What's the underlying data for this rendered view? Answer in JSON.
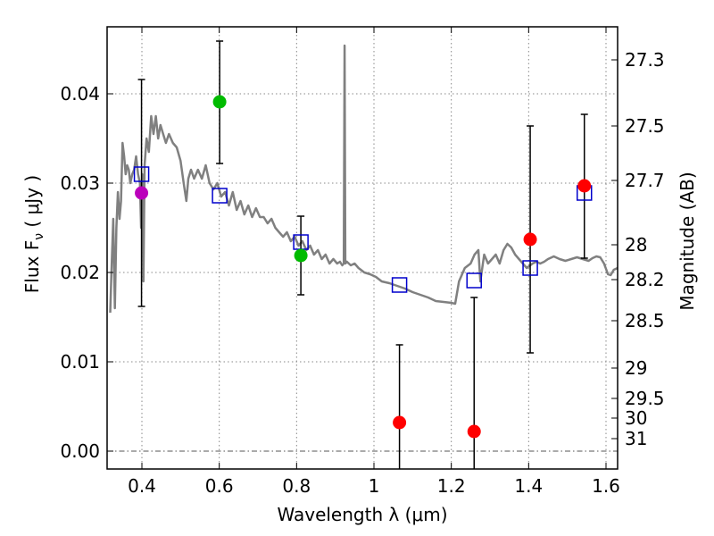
{
  "chart_data": {
    "type": "scatter",
    "title": "",
    "xlabel": "Wavelength  λ (μm)",
    "ylabel": "Flux  F_ν  ( μJy )",
    "ylabel_parts": {
      "prefix": "Flux  F",
      "subscript": "ν",
      "suffix": "  ( μJy )"
    },
    "ylabel_right": "Magnitude (AB)",
    "xlim": [
      0.31,
      1.63
    ],
    "ylim": [
      -0.002,
      0.0475
    ],
    "xticks": [
      0.4,
      0.6,
      0.8,
      1.0,
      1.2,
      1.4,
      1.6
    ],
    "xtick_labels": [
      "0.4",
      "0.6",
      "0.8",
      "1",
      "1.2",
      "1.4",
      "1.6"
    ],
    "yticks": [
      0.0,
      0.01,
      0.02,
      0.03,
      0.04
    ],
    "ytick_labels": [
      "0.00",
      "0.01",
      "0.02",
      "0.03",
      "0.04"
    ],
    "right_ticks": [
      {
        "label": "27.3",
        "flux": 0.0438
      },
      {
        "label": "27.5",
        "flux": 0.0364
      },
      {
        "label": "27.7",
        "flux": 0.0303
      },
      {
        "label": "28",
        "flux": 0.0231
      },
      {
        "label": "28.2",
        "flux": 0.0192
      },
      {
        "label": "28.5",
        "flux": 0.0146
      },
      {
        "label": "29",
        "flux": 0.0093
      },
      {
        "label": "29.5",
        "flux": 0.0059
      },
      {
        "label": "30",
        "flux": 0.0037
      },
      {
        "label": "31",
        "flux": 0.0014
      }
    ],
    "grid": true,
    "colors": {
      "sed": "#808080",
      "model": "#0000cc",
      "purple": "#bb00bb",
      "green": "#00bb00",
      "red": "#ff0000",
      "errorbar": "#000000",
      "grid": "#888888"
    },
    "sed_curve": [
      [
        0.318,
        0.0155
      ],
      [
        0.322,
        0.021
      ],
      [
        0.326,
        0.026
      ],
      [
        0.33,
        0.016
      ],
      [
        0.334,
        0.025
      ],
      [
        0.338,
        0.029
      ],
      [
        0.342,
        0.026
      ],
      [
        0.346,
        0.028
      ],
      [
        0.35,
        0.0345
      ],
      [
        0.354,
        0.033
      ],
      [
        0.358,
        0.031
      ],
      [
        0.362,
        0.032
      ],
      [
        0.366,
        0.0315
      ],
      [
        0.37,
        0.03
      ],
      [
        0.375,
        0.031
      ],
      [
        0.38,
        0.0315
      ],
      [
        0.385,
        0.033
      ],
      [
        0.39,
        0.031
      ],
      [
        0.395,
        0.03
      ],
      [
        0.398,
        0.025
      ],
      [
        0.401,
        0.031
      ],
      [
        0.404,
        0.019
      ],
      [
        0.407,
        0.032
      ],
      [
        0.412,
        0.035
      ],
      [
        0.418,
        0.0335
      ],
      [
        0.424,
        0.0375
      ],
      [
        0.43,
        0.0355
      ],
      [
        0.436,
        0.0375
      ],
      [
        0.442,
        0.035
      ],
      [
        0.448,
        0.0365
      ],
      [
        0.455,
        0.0355
      ],
      [
        0.462,
        0.0345
      ],
      [
        0.47,
        0.0355
      ],
      [
        0.48,
        0.0345
      ],
      [
        0.49,
        0.034
      ],
      [
        0.5,
        0.0325
      ],
      [
        0.508,
        0.03
      ],
      [
        0.515,
        0.028
      ],
      [
        0.52,
        0.0305
      ],
      [
        0.527,
        0.0315
      ],
      [
        0.535,
        0.0305
      ],
      [
        0.545,
        0.0315
      ],
      [
        0.555,
        0.0305
      ],
      [
        0.565,
        0.032
      ],
      [
        0.575,
        0.03
      ],
      [
        0.585,
        0.0293
      ],
      [
        0.595,
        0.03
      ],
      [
        0.605,
        0.0285
      ],
      [
        0.615,
        0.029
      ],
      [
        0.625,
        0.0275
      ],
      [
        0.635,
        0.029
      ],
      [
        0.645,
        0.027
      ],
      [
        0.655,
        0.028
      ],
      [
        0.665,
        0.0265
      ],
      [
        0.675,
        0.0275
      ],
      [
        0.685,
        0.0262
      ],
      [
        0.695,
        0.0272
      ],
      [
        0.705,
        0.0262
      ],
      [
        0.715,
        0.0262
      ],
      [
        0.725,
        0.0255
      ],
      [
        0.735,
        0.026
      ],
      [
        0.745,
        0.025
      ],
      [
        0.755,
        0.0245
      ],
      [
        0.765,
        0.024
      ],
      [
        0.775,
        0.0245
      ],
      [
        0.785,
        0.0235
      ],
      [
        0.795,
        0.024
      ],
      [
        0.805,
        0.023
      ],
      [
        0.815,
        0.0235
      ],
      [
        0.825,
        0.0225
      ],
      [
        0.835,
        0.023
      ],
      [
        0.845,
        0.022
      ],
      [
        0.855,
        0.0225
      ],
      [
        0.865,
        0.0215
      ],
      [
        0.875,
        0.022
      ],
      [
        0.885,
        0.021
      ],
      [
        0.895,
        0.0215
      ],
      [
        0.905,
        0.021
      ],
      [
        0.912,
        0.0212
      ],
      [
        0.918,
        0.0208
      ],
      [
        0.922,
        0.021
      ],
      [
        0.924,
        0.0454
      ],
      [
        0.926,
        0.021
      ],
      [
        0.93,
        0.0212
      ],
      [
        0.94,
        0.0208
      ],
      [
        0.95,
        0.021
      ],
      [
        0.96,
        0.0205
      ],
      [
        0.975,
        0.02
      ],
      [
        0.99,
        0.0198
      ],
      [
        1.005,
        0.0195
      ],
      [
        1.02,
        0.019
      ],
      [
        1.04,
        0.0188
      ],
      [
        1.06,
        0.0185
      ],
      [
        1.08,
        0.0182
      ],
      [
        1.1,
        0.0178
      ],
      [
        1.12,
        0.0175
      ],
      [
        1.14,
        0.0172
      ],
      [
        1.16,
        0.0168
      ],
      [
        1.18,
        0.0167
      ],
      [
        1.2,
        0.0166
      ],
      [
        1.21,
        0.0165
      ],
      [
        1.22,
        0.019
      ],
      [
        1.235,
        0.0205
      ],
      [
        1.25,
        0.021
      ],
      [
        1.26,
        0.022
      ],
      [
        1.27,
        0.0225
      ],
      [
        1.275,
        0.019
      ],
      [
        1.285,
        0.022
      ],
      [
        1.295,
        0.021
      ],
      [
        1.305,
        0.0215
      ],
      [
        1.315,
        0.022
      ],
      [
        1.325,
        0.021
      ],
      [
        1.335,
        0.0225
      ],
      [
        1.345,
        0.0232
      ],
      [
        1.355,
        0.0228
      ],
      [
        1.365,
        0.022
      ],
      [
        1.375,
        0.0215
      ],
      [
        1.385,
        0.021
      ],
      [
        1.395,
        0.0205
      ],
      [
        1.41,
        0.021
      ],
      [
        1.42,
        0.0212
      ],
      [
        1.43,
        0.021
      ],
      [
        1.44,
        0.0212
      ],
      [
        1.45,
        0.0215
      ],
      [
        1.465,
        0.0218
      ],
      [
        1.48,
        0.0215
      ],
      [
        1.495,
        0.0213
      ],
      [
        1.51,
        0.0215
      ],
      [
        1.525,
        0.0217
      ],
      [
        1.54,
        0.0215
      ],
      [
        1.555,
        0.0213
      ],
      [
        1.565,
        0.0216
      ],
      [
        1.575,
        0.0218
      ],
      [
        1.585,
        0.0217
      ],
      [
        1.595,
        0.021
      ],
      [
        1.605,
        0.0198
      ],
      [
        1.612,
        0.0197
      ],
      [
        1.62,
        0.0203
      ],
      [
        1.63,
        0.0205
      ]
    ],
    "model_points": [
      {
        "x": 0.399,
        "y": 0.031
      },
      {
        "x": 0.601,
        "y": 0.0286
      },
      {
        "x": 0.811,
        "y": 0.0234
      },
      {
        "x": 1.066,
        "y": 0.0186
      },
      {
        "x": 1.259,
        "y": 0.0191
      },
      {
        "x": 1.404,
        "y": 0.0205
      },
      {
        "x": 1.544,
        "y": 0.0289
      }
    ],
    "observed_points": [
      {
        "x": 0.399,
        "y": 0.0289,
        "err_low": 0.0162,
        "err_high": 0.0416,
        "color": "purple"
      },
      {
        "x": 0.601,
        "y": 0.0391,
        "err_low": 0.0322,
        "err_high": 0.0459,
        "color": "green"
      },
      {
        "x": 0.811,
        "y": 0.0219,
        "err_low": 0.0175,
        "err_high": 0.0263,
        "color": "green"
      },
      {
        "x": 1.066,
        "y": 0.0032,
        "err_low": -0.002,
        "err_high": 0.0119,
        "color": "red"
      },
      {
        "x": 1.259,
        "y": 0.0022,
        "err_low": -0.002,
        "err_high": 0.0172,
        "color": "red"
      },
      {
        "x": 1.404,
        "y": 0.0237,
        "err_low": 0.011,
        "err_high": 0.0364,
        "color": "red"
      },
      {
        "x": 1.544,
        "y": 0.0297,
        "err_low": 0.0216,
        "err_high": 0.0377,
        "color": "red"
      }
    ]
  }
}
